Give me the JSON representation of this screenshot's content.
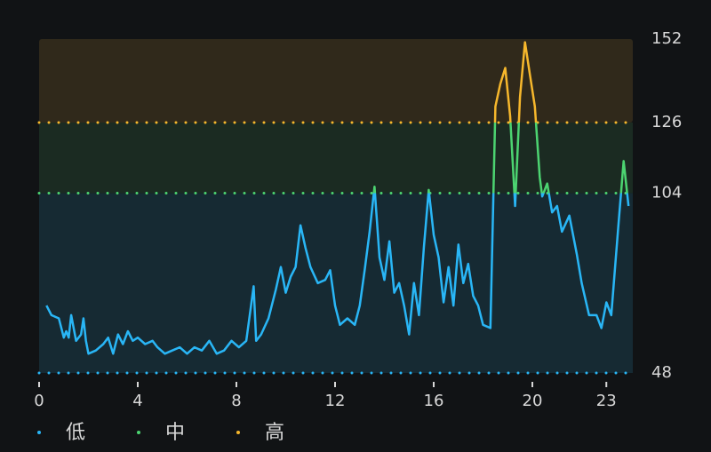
{
  "chart_data": {
    "type": "line",
    "x": [
      0.3,
      0.5,
      0.8,
      1.0,
      1.1,
      1.2,
      1.3,
      1.5,
      1.7,
      1.8,
      1.9,
      2.0,
      2.3,
      2.6,
      2.8,
      3.0,
      3.2,
      3.4,
      3.6,
      3.8,
      4.0,
      4.3,
      4.6,
      4.8,
      5.1,
      5.4,
      5.7,
      6.0,
      6.3,
      6.6,
      6.9,
      7.2,
      7.5,
      7.8,
      8.1,
      8.4,
      8.7,
      8.8,
      9.0,
      9.3,
      9.6,
      9.8,
      10.0,
      10.2,
      10.4,
      10.6,
      10.8,
      11.0,
      11.3,
      11.6,
      11.8,
      12.0,
      12.2,
      12.5,
      12.8,
      13.0,
      13.2,
      13.4,
      13.6,
      13.8,
      14.0,
      14.2,
      14.4,
      14.6,
      14.8,
      15.0,
      15.2,
      15.4,
      15.6,
      15.8,
      16.0,
      16.2,
      16.4,
      16.6,
      16.8,
      17.0,
      17.2,
      17.4,
      17.6,
      17.8,
      18.0,
      18.3,
      18.5,
      18.7,
      18.9,
      19.1,
      19.3,
      19.5,
      19.7,
      19.9,
      20.1,
      20.3,
      20.4,
      20.6,
      20.8,
      21.0,
      21.2,
      21.5,
      21.8,
      22.0,
      22.3,
      22.6,
      22.8,
      23.0,
      23.2,
      23.5,
      23.7,
      23.9
    ],
    "values": [
      69,
      66,
      65,
      59,
      61,
      59,
      66,
      58,
      60,
      65,
      58,
      54,
      55,
      57,
      59,
      54,
      60,
      57,
      61,
      58,
      59,
      57,
      58,
      56,
      54,
      55,
      56,
      54,
      56,
      55,
      58,
      54,
      55,
      58,
      56,
      58,
      75,
      58,
      60,
      65,
      74,
      81,
      73,
      78,
      81,
      94,
      87,
      81,
      76,
      77,
      80,
      69,
      63,
      65,
      63,
      69,
      80,
      92,
      106,
      84,
      77,
      89,
      73,
      76,
      69,
      60,
      76,
      66,
      87,
      105,
      91,
      84,
      70,
      81,
      69,
      88,
      76,
      82,
      72,
      69,
      63,
      62,
      131,
      138,
      143,
      128,
      100,
      134,
      151,
      141,
      131,
      109,
      103,
      107,
      98,
      100,
      92,
      97,
      85,
      76,
      66,
      66,
      62,
      70,
      66,
      95,
      114,
      100
    ],
    "xlim": [
      0,
      24
    ],
    "xticks": [
      0,
      4,
      8,
      12,
      16,
      20,
      23
    ],
    "ylim": [
      48,
      152
    ],
    "yticks": [
      48,
      104,
      126,
      152
    ],
    "zones": [
      {
        "name": "低",
        "from": 48,
        "to": 104,
        "color": "#29b6f6",
        "band": "#162a33"
      },
      {
        "name": "中",
        "from": 104,
        "to": 126,
        "color": "#4cd471",
        "band": "#1b2b22"
      },
      {
        "name": "高",
        "from": 126,
        "to": 152,
        "color": "#f6b72c",
        "band": "#30291b"
      }
    ]
  }
}
